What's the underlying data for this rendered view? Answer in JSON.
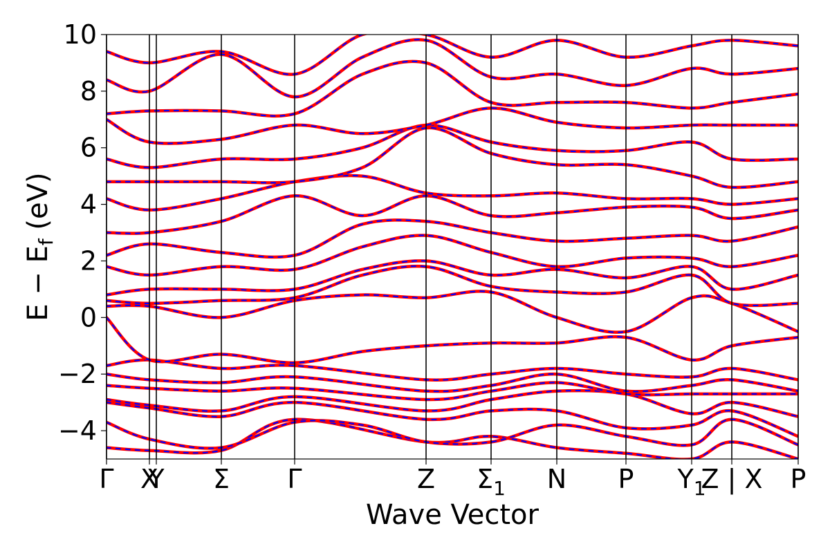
{
  "chart_data": {
    "type": "line",
    "title": "",
    "xlabel": "Wave Vector",
    "ylabel": "E − E",
    "ylabel_sub": "f",
    "ylabel_unit": " (eV)",
    "ylim": [
      -5,
      10
    ],
    "yticks": [
      -4,
      -2,
      0,
      2,
      4,
      6,
      8,
      10
    ],
    "ytick_labels": [
      "−4",
      "−2",
      "0",
      "2",
      "4",
      "6",
      "8",
      "10"
    ],
    "xlim": [
      0,
      1.0
    ],
    "kpoints": [
      {
        "label": "Γ",
        "sub": "",
        "x": 0.0
      },
      {
        "label": "X",
        "sub": "",
        "x": 0.062
      },
      {
        "label": "Y",
        "sub": "",
        "x": 0.072
      },
      {
        "label": "Σ",
        "sub": "",
        "x": 0.166
      },
      {
        "label": "Γ",
        "sub": "",
        "x": 0.272
      },
      {
        "label": "Z",
        "sub": "",
        "x": 0.462
      },
      {
        "label": "Σ",
        "sub": "1",
        "x": 0.556
      },
      {
        "label": "N",
        "sub": "",
        "x": 0.651
      },
      {
        "label": "P",
        "sub": "",
        "x": 0.751
      },
      {
        "label": "Y",
        "sub": "1",
        "x": 0.846
      },
      {
        "label": "Z | X",
        "sub": "",
        "x": 0.904
      },
      {
        "label": "P",
        "sub": "",
        "x": 1.0
      }
    ],
    "series": [
      {
        "color": "#ff0000",
        "style": "solid"
      },
      {
        "color": "#0000ff",
        "style": "dashed"
      }
    ],
    "bands": [
      [
        [
          0.0,
          -4.6
        ],
        [
          0.062,
          -4.7
        ],
        [
          0.166,
          -4.7
        ],
        [
          0.272,
          -3.6
        ],
        [
          0.462,
          -4.4
        ],
        [
          0.556,
          -4.2
        ],
        [
          0.651,
          -4.6
        ],
        [
          0.751,
          -4.8
        ],
        [
          0.846,
          -5.0
        ],
        [
          0.904,
          -4.4
        ],
        [
          1.0,
          -5.0
        ]
      ],
      [
        [
          0.0,
          -3.7
        ],
        [
          0.062,
          -4.3
        ],
        [
          0.166,
          -4.6
        ],
        [
          0.272,
          -3.7
        ],
        [
          0.37,
          -3.8
        ],
        [
          0.462,
          -4.4
        ],
        [
          0.556,
          -4.4
        ],
        [
          0.651,
          -3.8
        ],
        [
          0.751,
          -4.2
        ],
        [
          0.846,
          -4.5
        ],
        [
          0.904,
          -3.6
        ],
        [
          1.0,
          -4.5
        ]
      ],
      [
        [
          0.0,
          -3.0
        ],
        [
          0.062,
          -3.2
        ],
        [
          0.166,
          -3.5
        ],
        [
          0.272,
          -3.0
        ],
        [
          0.462,
          -3.6
        ],
        [
          0.556,
          -3.3
        ],
        [
          0.651,
          -3.3
        ],
        [
          0.751,
          -3.9
        ],
        [
          0.846,
          -3.8
        ],
        [
          0.904,
          -3.3
        ],
        [
          1.0,
          -4.2
        ]
      ],
      [
        [
          0.0,
          -2.9
        ],
        [
          0.062,
          -3.1
        ],
        [
          0.166,
          -3.3
        ],
        [
          0.272,
          -2.8
        ],
        [
          0.462,
          -3.3
        ],
        [
          0.556,
          -2.9
        ],
        [
          0.651,
          -2.6
        ],
        [
          0.751,
          -2.7
        ],
        [
          0.846,
          -3.4
        ],
        [
          0.904,
          -3.0
        ],
        [
          1.0,
          -3.5
        ]
      ],
      [
        [
          0.0,
          -2.4
        ],
        [
          0.062,
          -2.5
        ],
        [
          0.166,
          -2.6
        ],
        [
          0.272,
          -2.5
        ],
        [
          0.462,
          -2.9
        ],
        [
          0.556,
          -2.6
        ],
        [
          0.651,
          -2.3
        ],
        [
          0.751,
          -2.7
        ],
        [
          0.846,
          -2.7
        ],
        [
          0.904,
          -2.7
        ],
        [
          1.0,
          -2.7
        ]
      ],
      [
        [
          0.0,
          -2.0
        ],
        [
          0.062,
          -2.2
        ],
        [
          0.166,
          -2.3
        ],
        [
          0.272,
          -2.1
        ],
        [
          0.462,
          -2.6
        ],
        [
          0.556,
          -2.4
        ],
        [
          0.651,
          -2.0
        ],
        [
          0.751,
          -2.6
        ],
        [
          0.846,
          -2.4
        ],
        [
          0.904,
          -2.2
        ],
        [
          1.0,
          -2.6
        ]
      ],
      [
        [
          0.0,
          -1.7
        ],
        [
          0.062,
          -1.5
        ],
        [
          0.166,
          -1.8
        ],
        [
          0.272,
          -1.7
        ],
        [
          0.462,
          -2.2
        ],
        [
          0.556,
          -2.0
        ],
        [
          0.651,
          -1.8
        ],
        [
          0.751,
          -2.0
        ],
        [
          0.846,
          -2.1
        ],
        [
          0.904,
          -1.8
        ],
        [
          1.0,
          -2.2
        ]
      ],
      [
        [
          0.0,
          0.0
        ],
        [
          0.062,
          -1.5
        ],
        [
          0.166,
          -1.3
        ],
        [
          0.272,
          -1.6
        ],
        [
          0.37,
          -1.2
        ],
        [
          0.462,
          -1.0
        ],
        [
          0.556,
          -0.9
        ],
        [
          0.651,
          -0.9
        ],
        [
          0.751,
          -0.7
        ],
        [
          0.846,
          -1.5
        ],
        [
          0.904,
          -1.0
        ],
        [
          1.0,
          -0.7
        ]
      ],
      [
        [
          0.0,
          0.4
        ],
        [
          0.062,
          0.4
        ],
        [
          0.166,
          0.0
        ],
        [
          0.272,
          0.6
        ],
        [
          0.37,
          0.8
        ],
        [
          0.462,
          0.7
        ],
        [
          0.556,
          0.9
        ],
        [
          0.651,
          0.0
        ],
        [
          0.751,
          -0.5
        ],
        [
          0.846,
          0.7
        ],
        [
          0.904,
          0.5
        ],
        [
          1.0,
          -0.5
        ]
      ],
      [
        [
          0.0,
          0.6
        ],
        [
          0.062,
          0.5
        ],
        [
          0.166,
          0.6
        ],
        [
          0.272,
          0.7
        ],
        [
          0.37,
          1.5
        ],
        [
          0.462,
          1.8
        ],
        [
          0.556,
          1.1
        ],
        [
          0.651,
          0.9
        ],
        [
          0.751,
          0.9
        ],
        [
          0.846,
          1.5
        ],
        [
          0.904,
          0.5
        ],
        [
          1.0,
          0.5
        ]
      ],
      [
        [
          0.0,
          0.8
        ],
        [
          0.062,
          1.0
        ],
        [
          0.166,
          1.0
        ],
        [
          0.272,
          1.0
        ],
        [
          0.37,
          1.7
        ],
        [
          0.462,
          2.0
        ],
        [
          0.556,
          1.5
        ],
        [
          0.651,
          1.7
        ],
        [
          0.751,
          1.4
        ],
        [
          0.846,
          1.8
        ],
        [
          0.904,
          1.0
        ],
        [
          1.0,
          1.5
        ]
      ],
      [
        [
          0.0,
          1.8
        ],
        [
          0.062,
          1.5
        ],
        [
          0.166,
          1.8
        ],
        [
          0.272,
          1.7
        ],
        [
          0.37,
          2.5
        ],
        [
          0.462,
          2.9
        ],
        [
          0.556,
          2.3
        ],
        [
          0.651,
          1.8
        ],
        [
          0.751,
          2.1
        ],
        [
          0.846,
          2.1
        ],
        [
          0.904,
          1.8
        ],
        [
          1.0,
          2.2
        ]
      ],
      [
        [
          0.0,
          2.2
        ],
        [
          0.062,
          2.6
        ],
        [
          0.166,
          2.3
        ],
        [
          0.272,
          2.2
        ],
        [
          0.37,
          3.3
        ],
        [
          0.462,
          3.4
        ],
        [
          0.556,
          3.0
        ],
        [
          0.651,
          2.7
        ],
        [
          0.751,
          2.8
        ],
        [
          0.846,
          2.9
        ],
        [
          0.904,
          2.7
        ],
        [
          1.0,
          3.2
        ]
      ],
      [
        [
          0.0,
          3.0
        ],
        [
          0.062,
          3.0
        ],
        [
          0.166,
          3.4
        ],
        [
          0.272,
          4.3
        ],
        [
          0.37,
          3.6
        ],
        [
          0.462,
          4.3
        ],
        [
          0.556,
          3.6
        ],
        [
          0.651,
          3.7
        ],
        [
          0.751,
          3.9
        ],
        [
          0.846,
          3.9
        ],
        [
          0.904,
          3.5
        ],
        [
          1.0,
          3.8
        ]
      ],
      [
        [
          0.0,
          4.2
        ],
        [
          0.062,
          3.8
        ],
        [
          0.166,
          4.2
        ],
        [
          0.272,
          4.8
        ],
        [
          0.37,
          5.0
        ],
        [
          0.462,
          4.4
        ],
        [
          0.556,
          4.3
        ],
        [
          0.651,
          4.4
        ],
        [
          0.751,
          4.2
        ],
        [
          0.846,
          4.2
        ],
        [
          0.904,
          4.0
        ],
        [
          1.0,
          4.2
        ]
      ],
      [
        [
          0.0,
          4.8
        ],
        [
          0.062,
          4.8
        ],
        [
          0.166,
          4.8
        ],
        [
          0.272,
          4.8
        ],
        [
          0.37,
          5.3
        ],
        [
          0.462,
          6.7
        ],
        [
          0.556,
          5.8
        ],
        [
          0.651,
          5.4
        ],
        [
          0.751,
          5.4
        ],
        [
          0.846,
          5.0
        ],
        [
          0.904,
          4.6
        ],
        [
          1.0,
          4.8
        ]
      ],
      [
        [
          0.0,
          5.6
        ],
        [
          0.062,
          5.3
        ],
        [
          0.166,
          5.6
        ],
        [
          0.272,
          5.6
        ],
        [
          0.37,
          6.0
        ],
        [
          0.462,
          6.8
        ],
        [
          0.556,
          6.2
        ],
        [
          0.651,
          5.9
        ],
        [
          0.751,
          5.9
        ],
        [
          0.846,
          6.2
        ],
        [
          0.904,
          5.6
        ],
        [
          1.0,
          5.6
        ]
      ],
      [
        [
          0.0,
          7.0
        ],
        [
          0.062,
          6.2
        ],
        [
          0.166,
          6.3
        ],
        [
          0.272,
          6.8
        ],
        [
          0.37,
          6.5
        ],
        [
          0.462,
          6.8
        ],
        [
          0.556,
          7.4
        ],
        [
          0.651,
          6.9
        ],
        [
          0.751,
          6.7
        ],
        [
          0.846,
          6.8
        ],
        [
          0.904,
          6.8
        ],
        [
          1.0,
          6.8
        ]
      ],
      [
        [
          0.0,
          7.2
        ],
        [
          0.062,
          7.3
        ],
        [
          0.166,
          7.3
        ],
        [
          0.272,
          7.2
        ],
        [
          0.37,
          8.6
        ],
        [
          0.462,
          9.0
        ],
        [
          0.556,
          7.6
        ],
        [
          0.651,
          7.6
        ],
        [
          0.751,
          7.6
        ],
        [
          0.846,
          7.4
        ],
        [
          0.904,
          7.6
        ],
        [
          1.0,
          7.9
        ]
      ],
      [
        [
          0.0,
          8.4
        ],
        [
          0.062,
          8.0
        ],
        [
          0.166,
          9.3
        ],
        [
          0.272,
          7.8
        ],
        [
          0.37,
          9.2
        ],
        [
          0.462,
          9.8
        ],
        [
          0.556,
          8.5
        ],
        [
          0.651,
          8.6
        ],
        [
          0.751,
          8.2
        ],
        [
          0.846,
          8.8
        ],
        [
          0.904,
          8.6
        ],
        [
          1.0,
          8.8
        ]
      ],
      [
        [
          0.0,
          9.4
        ],
        [
          0.062,
          9.0
        ],
        [
          0.166,
          9.4
        ],
        [
          0.272,
          8.6
        ],
        [
          0.37,
          10.0
        ],
        [
          0.462,
          10.0
        ],
        [
          0.556,
          9.2
        ],
        [
          0.651,
          9.8
        ],
        [
          0.751,
          9.2
        ],
        [
          0.846,
          9.6
        ],
        [
          0.904,
          9.8
        ],
        [
          1.0,
          9.6
        ]
      ]
    ]
  }
}
